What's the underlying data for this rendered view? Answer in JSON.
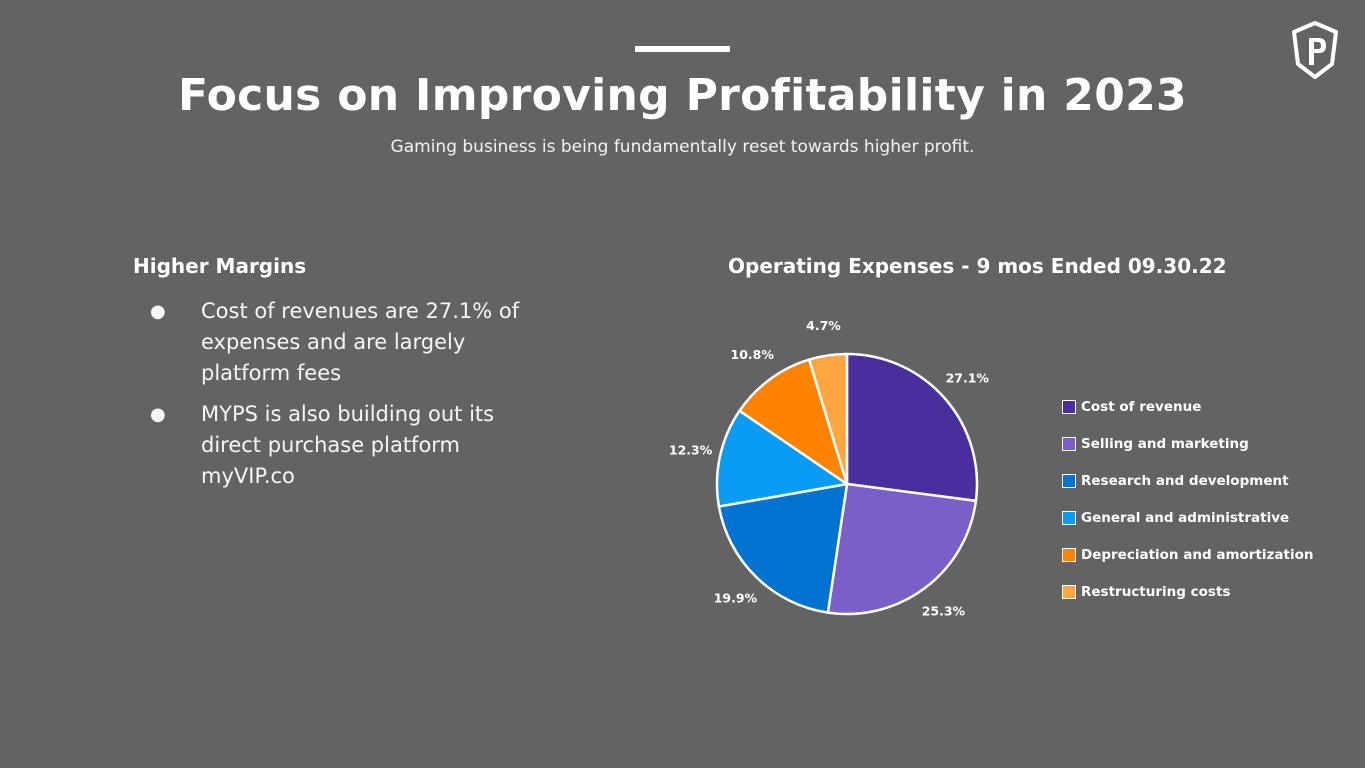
{
  "slide": {
    "title": "Focus on Improving Profitability in 2023",
    "subtitle": "Gaming business is being fundamentally reset towards higher profit.",
    "logo_icon": "shield-p-logo-icon"
  },
  "left": {
    "heading": "Higher Margins",
    "bullets": [
      "Cost of revenues are 27.1% of expenses and are largely platform fees",
      "MYPS is also building out its direct purchase platform myVIP.co"
    ]
  },
  "chart_data": {
    "type": "pie",
    "title": "Operating Expenses - 9 mos Ended 09.30.22",
    "categories": [
      "Cost of revenue",
      "Selling and marketing",
      "Research and development",
      "General and administrative",
      "Depreciation and amortization",
      "Restructuring costs"
    ],
    "values": [
      27.1,
      25.3,
      19.9,
      12.3,
      10.8,
      4.7
    ],
    "labels": [
      "27.1%",
      "25.3%",
      "19.9%",
      "12.3%",
      "10.8%",
      "4.7%"
    ],
    "colors": [
      "#4a2e9e",
      "#7b5fc9",
      "#0072cf",
      "#0a9cf5",
      "#ff8200",
      "#ffa640"
    ],
    "legend_position": "right"
  }
}
